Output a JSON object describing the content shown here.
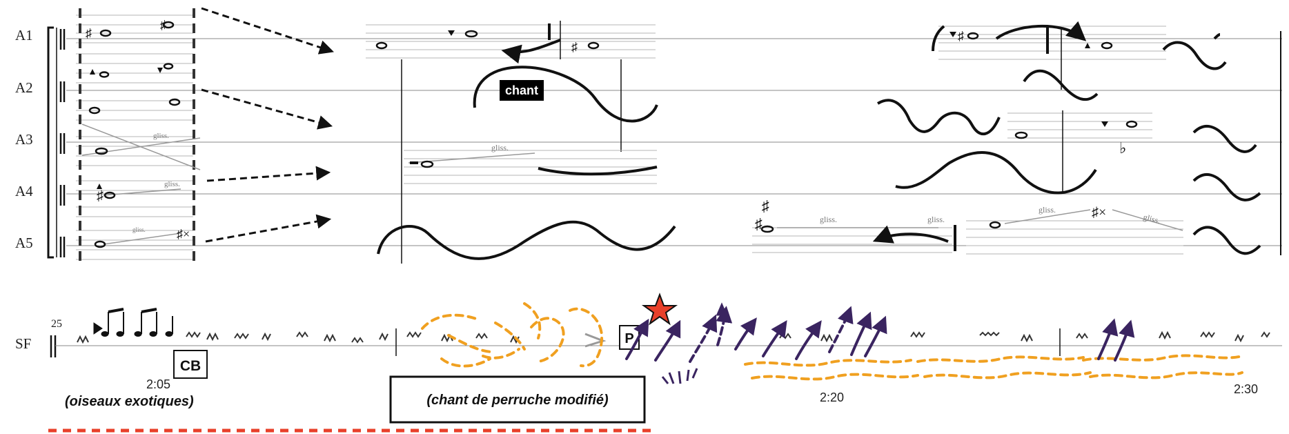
{
  "staves": [
    {
      "label": "A1"
    },
    {
      "label": "A2"
    },
    {
      "label": "A3"
    },
    {
      "label": "A4"
    },
    {
      "label": "A5"
    }
  ],
  "sf": {
    "label": "SF",
    "measure_number": "25"
  },
  "rehearsal_marks": {
    "cb": "CB",
    "p": "P"
  },
  "annotations": {
    "chant": "chant",
    "birds": "(oiseaux exotiques)",
    "parrot": "(chant de perruche modifié)"
  },
  "gliss_label": "gliss.",
  "timestamps": {
    "t1": "2:05",
    "t2": "2:20",
    "t3": "2:30"
  },
  "colors": {
    "ink": "#111111",
    "staff_line": "#9a9a9a",
    "orange_marks": "#f0a020",
    "purple_marks": "#3a2460",
    "highlight_dash": "#e8402a",
    "star": "#e8402a",
    "chant_box": "#000000"
  }
}
